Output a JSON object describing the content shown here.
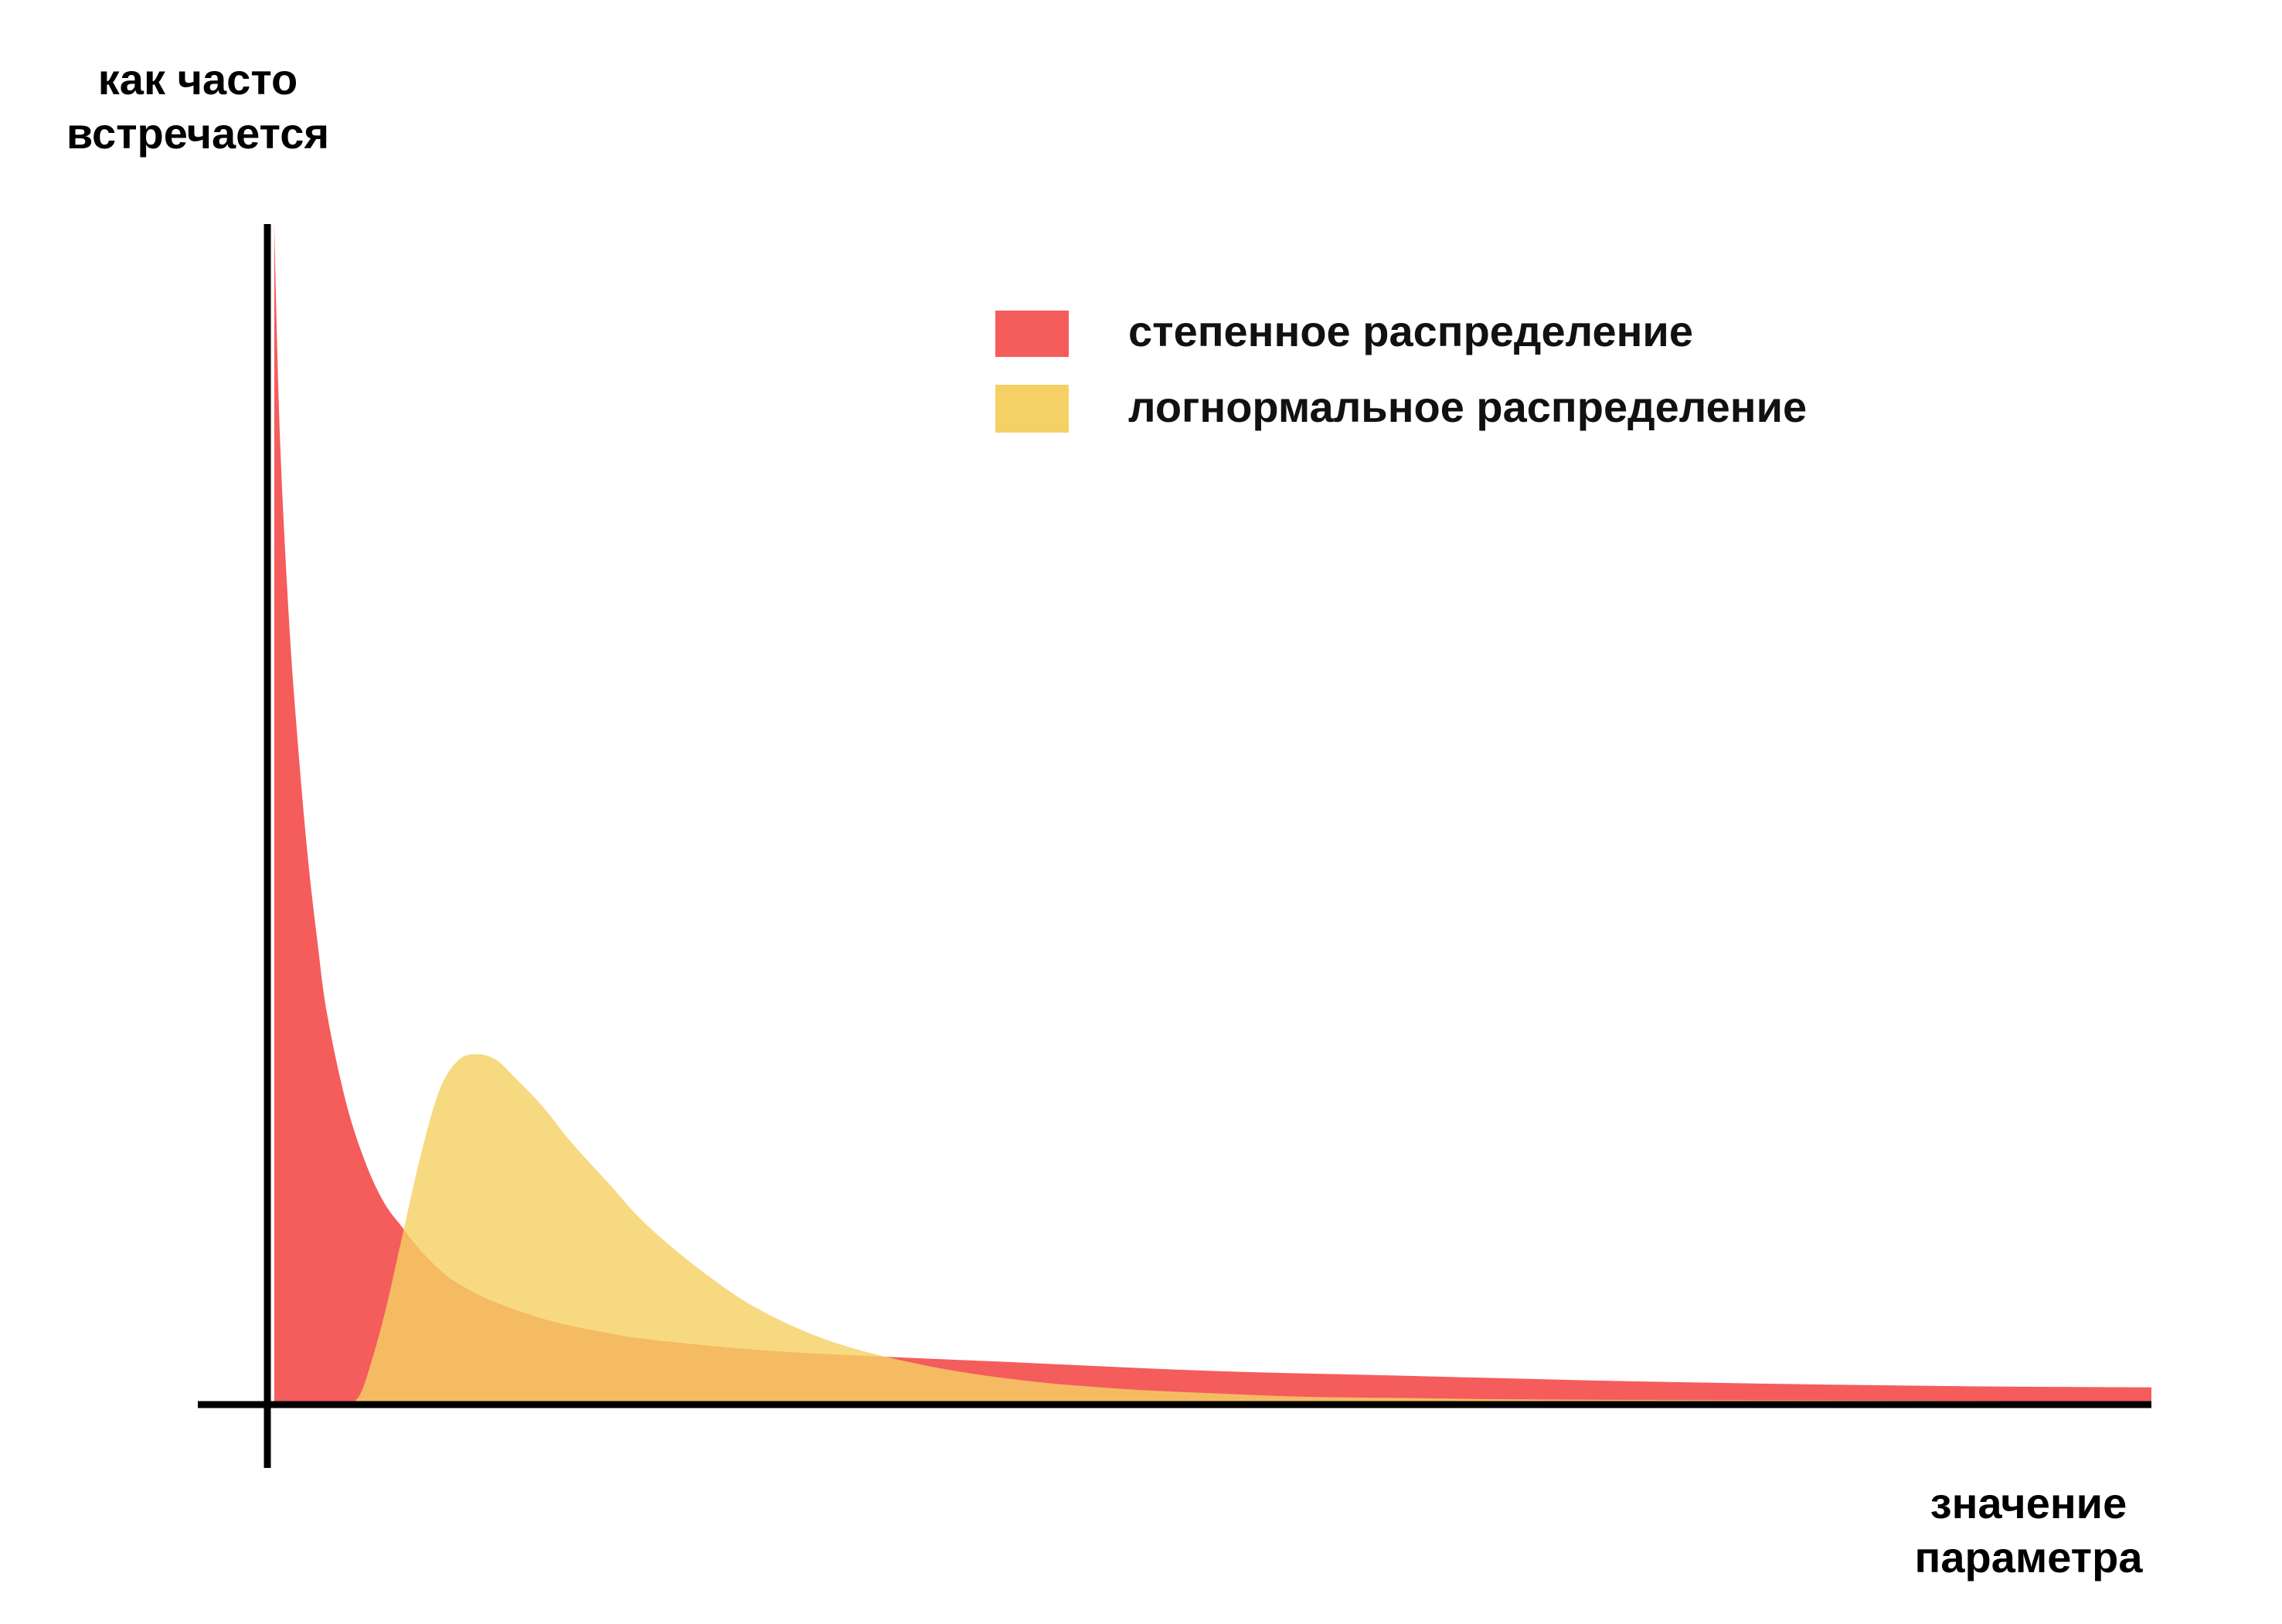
{
  "chart_data": {
    "type": "area",
    "title": "",
    "ylabel": [
      "как часто",
      "встречается"
    ],
    "xlabel": [
      "значение",
      "параметра"
    ],
    "xlim": [
      0,
      10
    ],
    "ylim": [
      0,
      10
    ],
    "grid": false,
    "legend_position": "top-right",
    "series": [
      {
        "name": "степенное распределение",
        "color": "#F55C5C",
        "x": [
          0.02,
          0.05,
          0.1,
          0.15,
          0.2,
          0.25,
          0.3,
          0.4,
          0.5,
          0.6,
          0.7,
          0.8,
          0.9,
          1.0,
          1.2,
          1.5,
          1.8,
          2.0,
          2.5,
          3.0,
          4.0,
          5.0,
          6.0,
          7.0,
          8.0,
          9.0,
          10.0
        ],
        "values": [
          10.0,
          8.2,
          6.6,
          5.5,
          4.6,
          3.9,
          3.3,
          2.55,
          2.05,
          1.7,
          1.48,
          1.28,
          1.12,
          1.0,
          0.84,
          0.68,
          0.58,
          0.53,
          0.45,
          0.4,
          0.33,
          0.26,
          0.22,
          0.18,
          0.15,
          0.13,
          0.12
        ]
      },
      {
        "name": "логнормальное распределение",
        "color": "#F5D165",
        "opacity": 0.82,
        "x": [
          0.45,
          0.5,
          0.6,
          0.7,
          0.8,
          0.9,
          1.0,
          1.1,
          1.2,
          1.3,
          1.45,
          1.6,
          1.8,
          2.0,
          2.3,
          2.6,
          3.0,
          3.5,
          4.0,
          4.5,
          5.0,
          5.5,
          6.0,
          6.5,
          7.0,
          8.0,
          9.0,
          10.0
        ],
        "values": [
          0.0,
          0.15,
          0.7,
          1.4,
          2.1,
          2.65,
          2.9,
          2.95,
          2.9,
          2.75,
          2.5,
          2.2,
          1.85,
          1.5,
          1.1,
          0.78,
          0.5,
          0.3,
          0.18,
          0.11,
          0.07,
          0.04,
          0.03,
          0.02,
          0.015,
          0.01,
          0.005,
          0.0
        ]
      }
    ]
  }
}
